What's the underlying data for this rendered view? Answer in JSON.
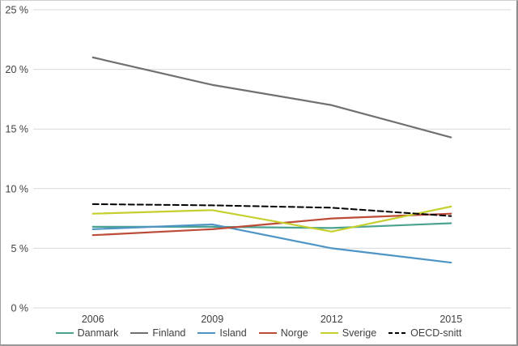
{
  "chart_data": {
    "type": "line",
    "categories": [
      "2006",
      "2009",
      "2012",
      "2015"
    ],
    "series": [
      {
        "name": "Danmark",
        "color": "#4BA291",
        "dashed": false,
        "values": [
          6.8,
          6.8,
          6.7,
          7.1
        ]
      },
      {
        "name": "Finland",
        "color": "#707070",
        "dashed": false,
        "values": [
          21.0,
          18.7,
          17.0,
          14.3
        ]
      },
      {
        "name": "Island",
        "color": "#4E95C6",
        "dashed": false,
        "values": [
          6.6,
          7.0,
          5.0,
          3.8
        ]
      },
      {
        "name": "Norge",
        "color": "#BC4B38",
        "dashed": false,
        "values": [
          6.1,
          6.6,
          7.5,
          7.9
        ]
      },
      {
        "name": "Sverige",
        "color": "#C5CF2D",
        "dashed": false,
        "values": [
          7.9,
          8.2,
          6.4,
          8.5
        ]
      },
      {
        "name": "OECD-snitt",
        "color": "#000000",
        "dashed": true,
        "values": [
          8.7,
          8.6,
          8.4,
          7.7
        ]
      }
    ],
    "y_ticks": [
      0,
      5,
      10,
      15,
      20,
      25
    ],
    "y_tick_labels": [
      "0 %",
      "5 %",
      "10 %",
      "15 %",
      "20 %",
      "25 %"
    ],
    "ylim": [
      0,
      25
    ],
    "grid": true,
    "legend_position": "bottom",
    "title": "",
    "xlabel": "",
    "ylabel": ""
  },
  "colors": {
    "gridline": "#D9D9D9",
    "tick_text": "#404040",
    "background": "#FFFFFF"
  }
}
